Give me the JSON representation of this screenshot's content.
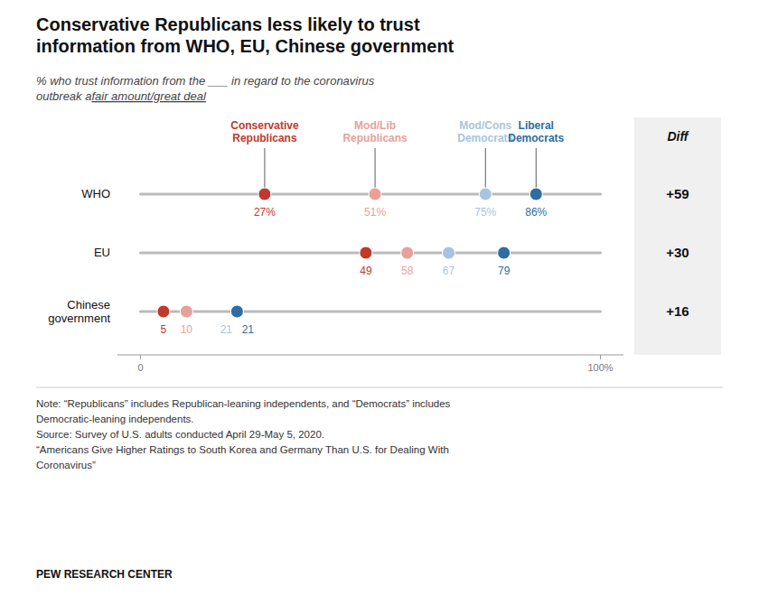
{
  "chart_data": {
    "type": "dot",
    "title": "Conservative Republicans less likely to trust\ninformation from WHO, EU, Chinese government",
    "subtitle": "% who trust information from the ___ in regard to the coronavirus\noutbreak a ",
    "subtitle_emphasis": "fair amount/great deal",
    "categories": [
      "WHO",
      "EU",
      "Chinese\ngovernment"
    ],
    "series": [
      {
        "name": "Conservative\nRepublicans",
        "color": "#c0392b",
        "values": [
          27,
          49,
          5
        ],
        "value_labels": [
          "27%",
          "49",
          "5"
        ]
      },
      {
        "name": "Mod/Lib\nRepublicans",
        "color": "#e8a09a",
        "values": [
          51,
          58,
          10
        ],
        "value_labels": [
          "51%",
          "58",
          "10"
        ]
      },
      {
        "name": "Mod/Cons\nDemocrats",
        "color": "#a8c4e0",
        "values": [
          75,
          67,
          21
        ],
        "value_labels": [
          "75%",
          "67",
          "21"
        ]
      },
      {
        "name": "Liberal\nDemocrats",
        "color": "#2e6da4",
        "values": [
          86,
          79,
          21
        ],
        "value_labels": [
          "86%",
          "79",
          "21"
        ]
      }
    ],
    "xlim": [
      -5,
      105
    ],
    "xticks": [
      0,
      {
        "value": 100,
        "label": "100%"
      }
    ],
    "grid": false,
    "data_labels": true,
    "diff": {
      "label": "Diff",
      "values": [
        59,
        30,
        16
      ],
      "value_labels": [
        "+59",
        "+30",
        "+16"
      ]
    },
    "note": "Note: “Republicans” includes Republican-leaning independents, and “Democrats” includes\nDemocratic-leaning independents.\nSource: Survey of U.S. adults conducted April 29-May 5, 2020.\n“Americans Give Higher Ratings to South Korea and Germany Than U.S. for Dealing With\nCoronavirus”",
    "footer": "PEW RESEARCH CENTER"
  }
}
